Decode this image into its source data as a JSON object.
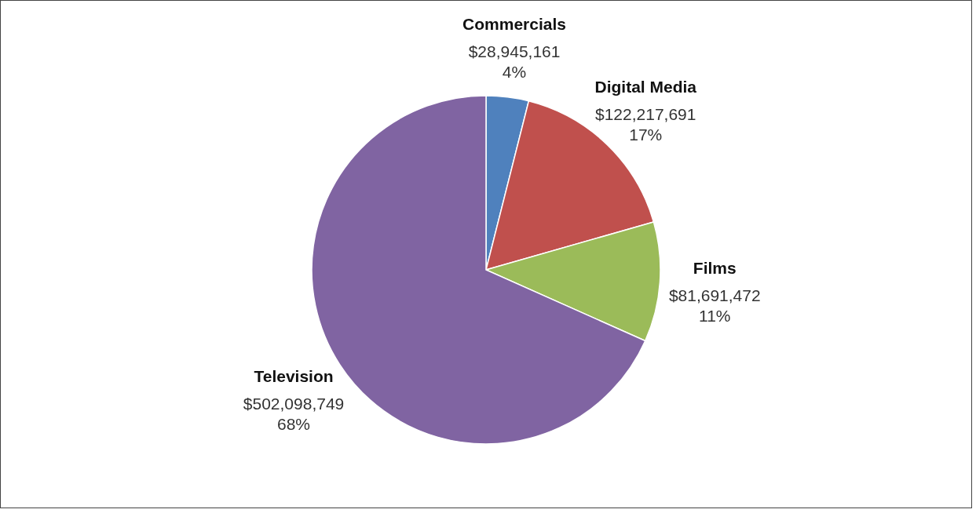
{
  "chart_data": {
    "type": "pie",
    "categories": [
      "Commercials",
      "Digital Media",
      "Films",
      "Television"
    ],
    "values": [
      28945161,
      122217691,
      81691472,
      502098749
    ],
    "colors": [
      "#4f81bd",
      "#c0504d",
      "#9bbb59",
      "#8064a2"
    ],
    "value_labels": [
      "$28,945,161\n4%",
      "$122,217,691\n17%",
      "$81,691,472\n11%",
      "$502,098,749\n68%"
    ],
    "legend": false
  }
}
